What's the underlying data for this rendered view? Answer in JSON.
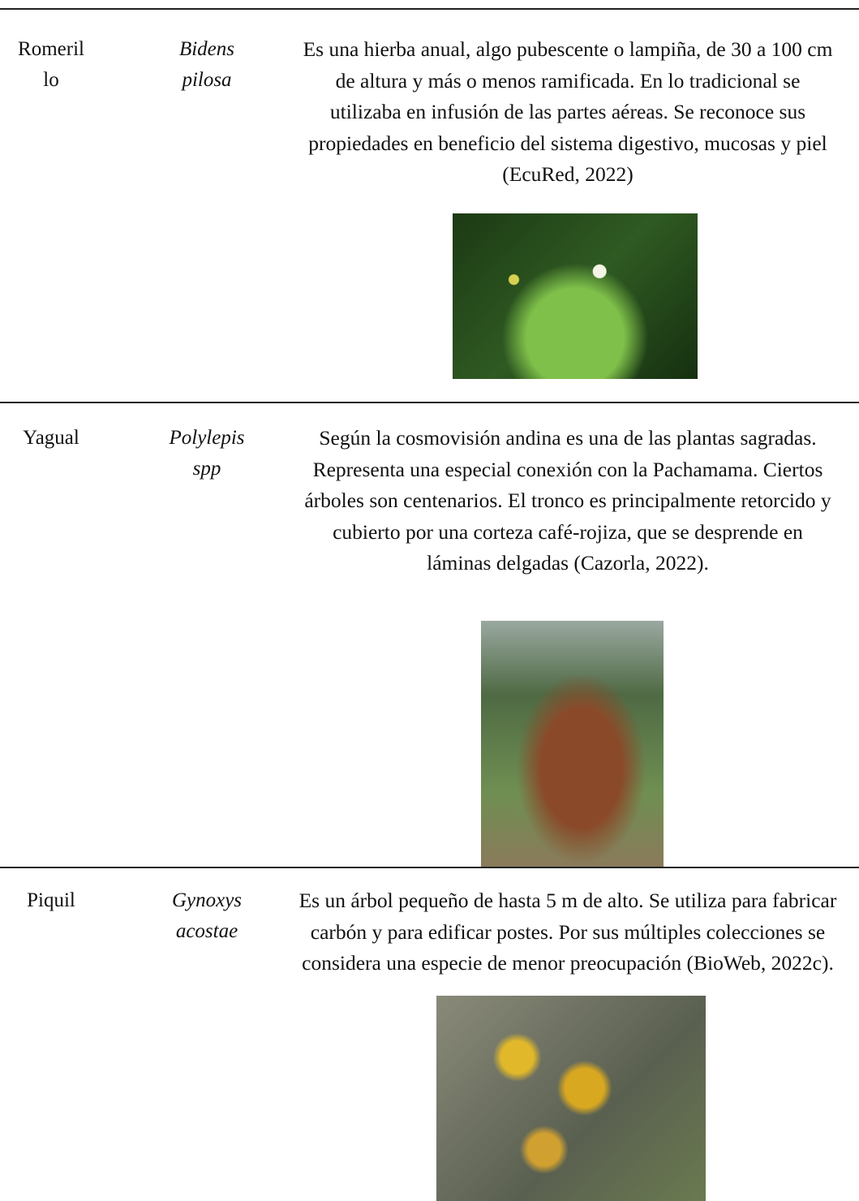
{
  "table": {
    "rows": [
      {
        "common_name": "Romerillo",
        "scientific_name": "Bidens pilosa",
        "description": "Es una hierba anual, algo pubescente o lampiña, de 30 a 100 cm de altura y más o menos ramificada. En lo tradicional se utilizaba en infusión de las partes aéreas. Se reconoce sus propiedades en beneficio del sistema digestivo, mucosas y piel (EcuRed, 2022)"
      },
      {
        "common_name": "Yagual",
        "scientific_name": "Polylepis spp",
        "description": "Según la cosmovisión andina es una de las plantas sagradas. Representa una especial conexión con la Pachamama. Ciertos árboles son centenarios. El tronco es principalmente retorcido y cubierto por una corteza café-rojiza, que se desprende en láminas delgadas (Cazorla, 2022)."
      },
      {
        "common_name": "Piquil",
        "scientific_name": "Gynoxys acostae",
        "description": "Es un árbol pequeño de hasta 5 m de alto. Se utiliza para fabricar carbón y para edificar postes. Por sus múltiples colecciones se considera una especie de menor preocupación (BioWeb, 2022c)."
      }
    ]
  }
}
